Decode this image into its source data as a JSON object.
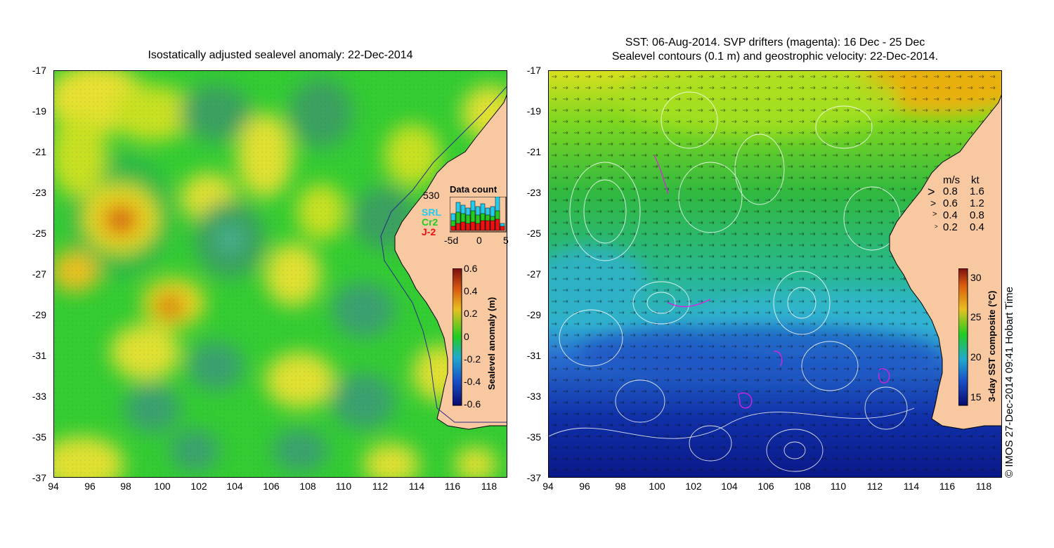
{
  "left_panel": {
    "title": "Isostatically adjusted sealevel anomaly: 22-Dec-2014",
    "colorbar": {
      "label": "Sealevel anomaly (m)",
      "ticks": [
        "0.6",
        "0.4",
        "0.2",
        "0",
        "-0.2",
        "-0.4",
        "-0.6"
      ]
    },
    "data_count": {
      "title": "Data count",
      "max_label": "530",
      "legend": [
        {
          "name": "SRL",
          "color": "#22ccee"
        },
        {
          "name": "Cr2",
          "color": "#22cc22"
        },
        {
          "name": "J-2",
          "color": "#ee1111"
        }
      ],
      "x_ticks": [
        "-5d",
        "0",
        "5"
      ]
    }
  },
  "right_panel": {
    "title_line1": "SST: 06-Aug-2014. SVP drifters (magenta): 16 Dec - 25 Dec",
    "title_line2": "Sealevel contours (0.1 m) and geostrophic velocity: 22-Dec-2014.",
    "speed_legend": {
      "header_ms": "m/s",
      "header_kt": "kt",
      "rows": [
        {
          "ms": "0.8",
          "kt": "1.6",
          "arrow": ">"
        },
        {
          "ms": "0.6",
          "kt": "1.2",
          "arrow": ">"
        },
        {
          "ms": "0.4",
          "kt": "0.8",
          "arrow": ">"
        },
        {
          "ms": "0.2",
          "kt": "0.4",
          "arrow": ">"
        }
      ]
    },
    "colorbar": {
      "label": "3-day SST composite (°C)",
      "ticks": [
        "30",
        "25",
        "20",
        "15"
      ]
    },
    "credit": "© IMOS 27-Dec-2014 09:41 Hobart Time"
  },
  "axes": {
    "lat_ticks": [
      "-17",
      "-19",
      "-21",
      "-23",
      "-25",
      "-27",
      "-29",
      "-31",
      "-33",
      "-35",
      "-37"
    ],
    "lon_ticks": [
      "94",
      "96",
      "98",
      "100",
      "102",
      "104",
      "106",
      "108",
      "110",
      "112",
      "114",
      "116",
      "118"
    ]
  },
  "colors": {
    "land": "#f8c9a0",
    "coast": "#000000"
  }
}
